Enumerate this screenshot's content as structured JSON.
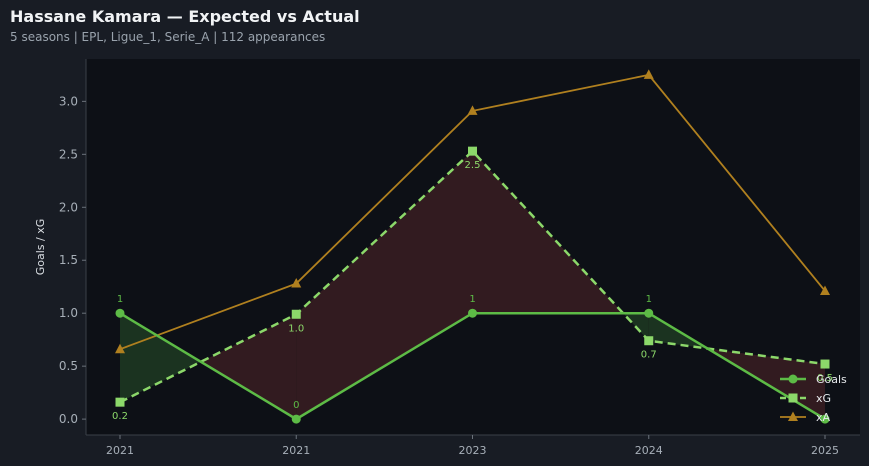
{
  "header": {
    "title": "Hassane Kamara — Expected vs Actual",
    "subtitle": "5 seasons | EPL, Ligue_1, Serie_A | 112 appearances"
  },
  "colors": {
    "goals": "#5dbb46",
    "xg": "#8cd86a",
    "xa": "#b0801f",
    "over_fill": "#1f3a22",
    "under_fill": "#3a1d22",
    "background": "#181c24",
    "plot_bg": "#0d1016"
  },
  "chart_data": {
    "type": "line",
    "title": "Hassane Kamara — Expected vs Actual",
    "xlabel": "",
    "ylabel": "Goals / xG",
    "categories": [
      "2021",
      "2021",
      "2023",
      "2024",
      "2025"
    ],
    "ylim": [
      -0.15,
      3.4
    ],
    "yticks": [
      0.0,
      0.5,
      1.0,
      1.5,
      2.0,
      2.5,
      3.0
    ],
    "grid": false,
    "legend_position": "bottom-right",
    "series": [
      {
        "name": "Goals",
        "marker": "circle",
        "style": "solid",
        "values": [
          1,
          0,
          1,
          1,
          0
        ],
        "labels": [
          "1",
          "0",
          "1",
          "1",
          ""
        ]
      },
      {
        "name": "xG",
        "marker": "square",
        "style": "dashed",
        "values": [
          0.16,
          0.99,
          2.53,
          0.74,
          0.52
        ],
        "labels": [
          "0.2",
          "1.0",
          "2.5",
          "0.7",
          "0.5"
        ]
      },
      {
        "name": "xA",
        "marker": "triangle",
        "style": "solid",
        "values": [
          0.66,
          1.28,
          2.91,
          3.25,
          1.21
        ],
        "labels": []
      }
    ]
  }
}
